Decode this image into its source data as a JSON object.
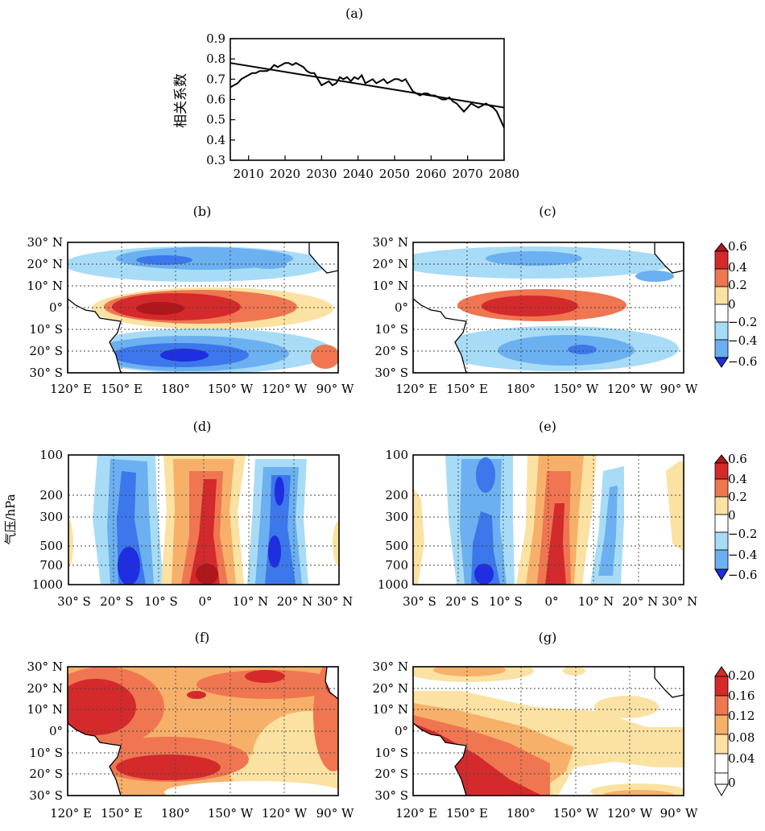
{
  "colors": {
    "neg": [
      "#1f2ee0",
      "#3c78eb",
      "#6bb0f0",
      "#a8dcf6"
    ],
    "pos": [
      "#fbe2a2",
      "#f7b06a",
      "#ef7650",
      "#d42a2c"
    ]
  },
  "panel_labels": {
    "a": "(a)",
    "b": "(b)",
    "c": "(c)",
    "d": "(d)",
    "e": "(e)",
    "f": "(f)",
    "g": "(g)"
  },
  "axes": {
    "lon_ticks": [
      "120° E",
      "150° E",
      "180°",
      "150° W",
      "120° W",
      "90° W"
    ],
    "lat_ticks": [
      "30° N",
      "20° N",
      "10° N",
      "0°",
      "10° S",
      "20° S",
      "30° S"
    ],
    "meridional_ticks": [
      "30° S",
      "20° S",
      "10° S",
      "0°",
      "10° N",
      "20° N",
      "30° N"
    ],
    "pressure_ticks": [
      "100",
      "200",
      "300",
      "500",
      "700",
      "1000"
    ],
    "pressure_label": "气压/hPa"
  },
  "colorbars": {
    "b": [
      "0.6",
      "0.4",
      "0.2",
      "0",
      "−0.2",
      "−0.4",
      "−0.6"
    ],
    "d": [
      "0.6",
      "0.4",
      "0.2",
      "0",
      "−0.2",
      "−0.4",
      "−0.6"
    ],
    "f": [
      "0.20",
      "0.16",
      "0.12",
      "0.08",
      "0.04",
      "0"
    ]
  },
  "chart_data": [
    {
      "type": "line",
      "panel": "(a)",
      "ylabel": "相关系数",
      "xlabel": "",
      "xlim": [
        2005,
        2080
      ],
      "ylim": [
        0.3,
        0.9
      ],
      "x_ticks": [
        2010,
        2020,
        2030,
        2040,
        2050,
        2060,
        2070,
        2080
      ],
      "y_ticks": [
        "0.3",
        "0.4",
        "0.5",
        "0.6",
        "0.7",
        "0.8",
        "0.9"
      ],
      "series": [
        {
          "x": [
            2005,
            2006,
            2007,
            2008,
            2009,
            2010,
            2011,
            2012,
            2013,
            2014,
            2015,
            2016,
            2017,
            2018,
            2019,
            2020,
            2021,
            2022,
            2023,
            2024,
            2025,
            2026,
            2027,
            2028,
            2029,
            2030,
            2031,
            2032,
            2033,
            2034,
            2035,
            2036,
            2037,
            2038,
            2039,
            2040,
            2041,
            2042,
            2043,
            2044,
            2045,
            2046,
            2047,
            2048,
            2049,
            2050,
            2051,
            2052,
            2053,
            2054,
            2055,
            2056,
            2057,
            2058,
            2059,
            2060,
            2061,
            2062,
            2063,
            2064,
            2065,
            2066,
            2067,
            2068,
            2069,
            2070,
            2071,
            2072,
            2073,
            2074,
            2075,
            2076,
            2077,
            2078,
            2079,
            2080
          ],
          "y": [
            0.66,
            0.67,
            0.68,
            0.7,
            0.71,
            0.72,
            0.73,
            0.73,
            0.74,
            0.74,
            0.74,
            0.75,
            0.77,
            0.76,
            0.77,
            0.78,
            0.78,
            0.77,
            0.78,
            0.77,
            0.76,
            0.74,
            0.73,
            0.73,
            0.7,
            0.67,
            0.68,
            0.69,
            0.67,
            0.68,
            0.71,
            0.7,
            0.71,
            0.69,
            0.71,
            0.7,
            0.72,
            0.68,
            0.69,
            0.7,
            0.68,
            0.69,
            0.7,
            0.68,
            0.69,
            0.7,
            0.7,
            0.69,
            0.7,
            0.67,
            0.64,
            0.63,
            0.62,
            0.63,
            0.63,
            0.62,
            0.62,
            0.61,
            0.6,
            0.6,
            0.61,
            0.59,
            0.58,
            0.56,
            0.54,
            0.56,
            0.58,
            0.57,
            0.56,
            0.57,
            0.58,
            0.57,
            0.56,
            0.54,
            0.5,
            0.46
          ]
        },
        {
          "x": [
            2005,
            2080
          ],
          "y": [
            0.78,
            0.56
          ]
        }
      ]
    },
    {
      "type": "heatmap",
      "panel": "(b)",
      "colorbar": [
        -0.6,
        -0.4,
        -0.2,
        0,
        0.2,
        0.4,
        0.6
      ]
    },
    {
      "type": "heatmap",
      "panel": "(c)",
      "colorbar": [
        -0.6,
        -0.4,
        -0.2,
        0,
        0.2,
        0.4,
        0.6
      ]
    },
    {
      "type": "heatmap",
      "panel": "(d)",
      "ylabel": "气压/hPa",
      "colorbar": [
        -0.6,
        -0.4,
        -0.2,
        0,
        0.2,
        0.4,
        0.6
      ]
    },
    {
      "type": "heatmap",
      "panel": "(e)",
      "colorbar": [
        -0.6,
        -0.4,
        -0.2,
        0,
        0.2,
        0.4,
        0.6
      ]
    },
    {
      "type": "heatmap",
      "panel": "(f)",
      "colorbar": [
        0,
        0.04,
        0.08,
        0.12,
        0.16,
        0.2
      ]
    },
    {
      "type": "heatmap",
      "panel": "(g)",
      "colorbar": [
        0,
        0.04,
        0.08,
        0.12,
        0.16,
        0.2
      ]
    }
  ]
}
